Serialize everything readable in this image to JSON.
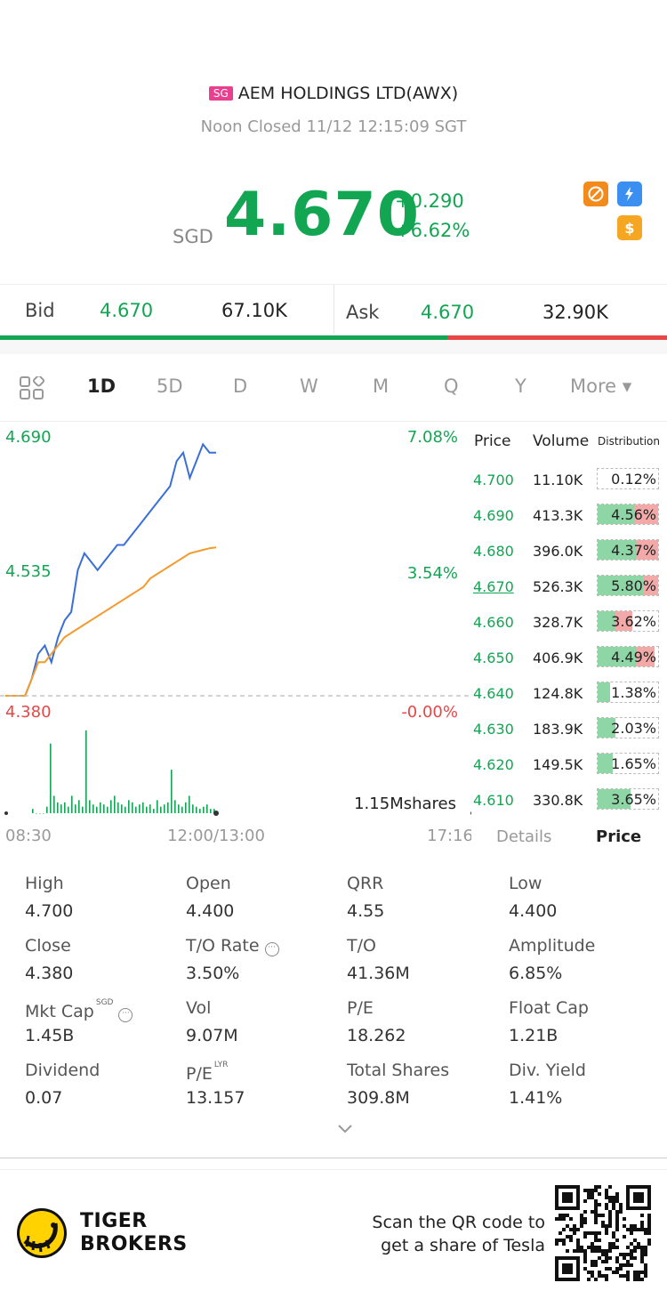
{
  "header": {
    "exchange_flag": "SG",
    "title": "AEM HOLDINGS LTD(AWX)",
    "status": "Noon Closed 11/12 12:15:09 SGT"
  },
  "quote": {
    "currency": "SGD",
    "price": "4.670",
    "change": "+0.290",
    "change_pct": "+6.62%",
    "badges": [
      "no-short-icon",
      "flash-icon",
      "dollar-icon"
    ]
  },
  "bid_ask": {
    "bid_label": "Bid",
    "bid_price": "4.670",
    "bid_volume": "67.10K",
    "ask_label": "Ask",
    "ask_price": "4.670",
    "ask_volume": "32.90K",
    "bid_share": 0.67
  },
  "tabs": [
    "1D",
    "5D",
    "D",
    "W",
    "M",
    "Q",
    "Y",
    "More ▾"
  ],
  "active_tab": "1D",
  "chart": {
    "y_high": "4.690",
    "y_mid": "4.535",
    "y_low": "4.380",
    "pct_high": "7.08%",
    "pct_mid": "3.54%",
    "pct_low": "-0.00%",
    "volume_label": "1.15Mshares",
    "x_start": "08:30",
    "x_mid": "12:00/13:00",
    "x_end": "17:16"
  },
  "chart_data": {
    "type": "line",
    "title": "",
    "xlabel": "",
    "ylabel": "",
    "ylim": [
      4.38,
      4.69
    ],
    "x_ticks": [
      "08:30",
      "12:00/13:00",
      "17:16"
    ],
    "series": [
      {
        "color": "#3a6fd8",
        "values": [
          4.38,
          4.38,
          4.38,
          4.38,
          4.4,
          4.43,
          4.44,
          4.42,
          4.45,
          4.47,
          4.48,
          4.53,
          4.55,
          4.54,
          4.53,
          4.54,
          4.55,
          4.56,
          4.56,
          4.57,
          4.58,
          4.59,
          4.6,
          4.61,
          4.62,
          4.63,
          4.66,
          4.67,
          4.64,
          4.66,
          4.68,
          4.67,
          4.67
        ]
      },
      {
        "color": "#f29b2e",
        "values": [
          4.38,
          4.38,
          4.38,
          4.38,
          4.4,
          4.42,
          4.42,
          4.43,
          4.44,
          4.45,
          4.455,
          4.46,
          4.465,
          4.47,
          4.475,
          4.48,
          4.485,
          4.49,
          4.495,
          4.5,
          4.505,
          4.51,
          4.52,
          4.525,
          4.53,
          4.535,
          4.54,
          4.545,
          4.55,
          4.552,
          4.554,
          4.556,
          4.557
        ]
      }
    ],
    "volume_bars": [
      2,
      0,
      0,
      0,
      3,
      32,
      8,
      5,
      4,
      5,
      3,
      8,
      4,
      6,
      3,
      38,
      6,
      4,
      3,
      5,
      4,
      3,
      6,
      8,
      5,
      4,
      3,
      6,
      5,
      3,
      4,
      5,
      3,
      4,
      2,
      6,
      3,
      4,
      5,
      20,
      6,
      4,
      3,
      5,
      8,
      4,
      3,
      2,
      3,
      4,
      2,
      2
    ]
  },
  "order_table": {
    "headers": [
      "Price",
      "Volume",
      "Distribution"
    ],
    "rows": [
      {
        "price": "4.700",
        "volume": "11.10K",
        "dist": "0.12%",
        "green": 0.0,
        "red": 0.0
      },
      {
        "price": "4.690",
        "volume": "413.3K",
        "dist": "4.56%",
        "green": 0.6,
        "red": 0.4
      },
      {
        "price": "4.680",
        "volume": "396.0K",
        "dist": "4.37%",
        "green": 0.65,
        "red": 0.35
      },
      {
        "price": "4.670",
        "volume": "526.3K",
        "dist": "5.80%",
        "green": 0.75,
        "red": 0.25
      },
      {
        "price": "4.660",
        "volume": "328.7K",
        "dist": "3.62%",
        "green": 0.3,
        "red": 0.28
      },
      {
        "price": "4.650",
        "volume": "406.9K",
        "dist": "4.49%",
        "green": 0.65,
        "red": 0.3
      },
      {
        "price": "4.640",
        "volume": "124.8K",
        "dist": "1.38%",
        "green": 0.2,
        "red": 0.0
      },
      {
        "price": "4.630",
        "volume": "183.9K",
        "dist": "2.03%",
        "green": 0.3,
        "red": 0.0
      },
      {
        "price": "4.620",
        "volume": "149.5K",
        "dist": "1.65%",
        "green": 0.25,
        "red": 0.0
      },
      {
        "price": "4.610",
        "volume": "330.8K",
        "dist": "3.65%",
        "green": 0.55,
        "red": 0.0
      }
    ],
    "tab_details": "Details",
    "tab_price": "Price"
  },
  "stats": [
    {
      "label": "High",
      "value": "4.700"
    },
    {
      "label": "Open",
      "value": "4.400"
    },
    {
      "label": "QRR",
      "value": "4.55"
    },
    {
      "label": "Low",
      "value": "4.400"
    },
    {
      "label": "Close",
      "value": "4.380"
    },
    {
      "label": "T/O Rate",
      "value": "3.50%",
      "info": true
    },
    {
      "label": "T/O",
      "value": "41.36M"
    },
    {
      "label": "Amplitude",
      "value": "6.85%"
    },
    {
      "label": "Mkt Cap",
      "value": "1.45B",
      "sup": "SGD",
      "info": true
    },
    {
      "label": "Vol",
      "value": "9.07M"
    },
    {
      "label": "P/E",
      "value": "18.262"
    },
    {
      "label": "Float Cap",
      "value": "1.21B"
    },
    {
      "label": "Dividend",
      "value": "0.07"
    },
    {
      "label": "P/E",
      "value": "13.157",
      "sup": "LYR"
    },
    {
      "label": "Total Shares",
      "value": "309.8M"
    },
    {
      "label": "Div. Yield",
      "value": "1.41%"
    }
  ],
  "footer": {
    "brand_line1": "TIGER",
    "brand_line2": "BROKERS",
    "scan_line1": "Scan the QR code to",
    "scan_line2": "get a share of Tesla"
  }
}
